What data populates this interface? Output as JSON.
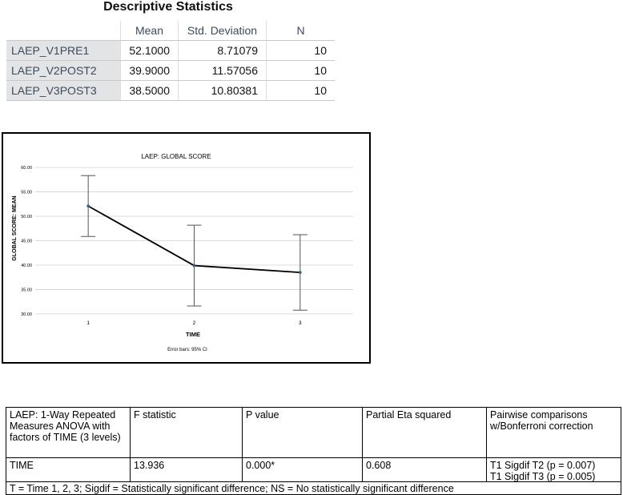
{
  "descriptives": {
    "title": "Descriptive Statistics",
    "headers": [
      "Mean",
      "Std. Deviation",
      "N"
    ],
    "rows": [
      [
        "LAEP_V1PRE1",
        "52.1000",
        "8.71079",
        "10"
      ],
      [
        "LAEP_V2POST2",
        "39.9000",
        "11.57056",
        "10"
      ],
      [
        "LAEP_V3POST3",
        "38.5000",
        "10.80381",
        "10"
      ]
    ]
  },
  "chart_data": {
    "type": "line",
    "title": "LAEP: GLOBAL SCORE",
    "x_label": "TIME",
    "y_label": "GLOBAL SCORE: MEAN",
    "note": "Error bars: 95% CI",
    "categories": [
      "1",
      "2",
      "3"
    ],
    "values": [
      52.1,
      39.9,
      38.5
    ],
    "errors": [
      6.23,
      8.28,
      7.73
    ],
    "color": "#000000",
    "marker_color": "#2f5d7c",
    "ylim": [
      29,
      61
    ],
    "yticks": [
      {
        "value": 30,
        "label": "30.00"
      },
      {
        "value": 35,
        "label": "35.00"
      },
      {
        "value": 40,
        "label": "40.00"
      },
      {
        "value": 45,
        "label": "45.00"
      },
      {
        "value": 50,
        "label": "50.00"
      },
      {
        "value": 55,
        "label": "55.00"
      },
      {
        "value": 60,
        "label": "60.00"
      }
    ],
    "grid": true
  },
  "anova": {
    "headers": [
      "LAEP: 1-Way Repeated Measures ANOVA with factors of TIME (3 levels)",
      "F statistic",
      "P value",
      "Partial Eta squared",
      "Pairwise comparisons w/Bonferroni correction"
    ],
    "row": [
      "TIME",
      "13.936",
      "0.000*",
      "0.608",
      "T1 Sigdif T2 (p = 0.007)",
      "T1 Sigdif T3 (p = 0.005)"
    ],
    "footnote": "T = Time 1, 2, 3; Sigdif = Statistically significant difference; NS = No statistically significant difference"
  }
}
